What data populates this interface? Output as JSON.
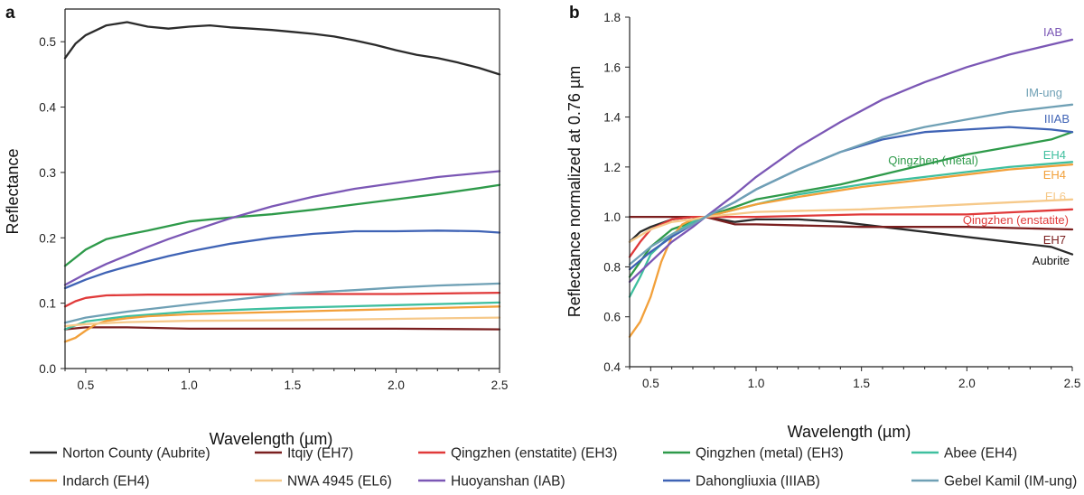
{
  "chart_data": [
    {
      "panel": "a",
      "type": "line",
      "xlabel": "Wavelength (µm)",
      "ylabel": "Reflectance",
      "xlim": [
        0.4,
        2.5
      ],
      "ylim": [
        0.0,
        0.55
      ],
      "xticks": [
        0.5,
        1.0,
        1.5,
        2.0,
        2.5
      ],
      "xtick_labels": [
        "0.5",
        "1.0",
        "1.5",
        "2.0",
        "2.5"
      ],
      "yticks": [
        0.0,
        0.1,
        0.2,
        0.3,
        0.4,
        0.5
      ],
      "ytick_labels": [
        "0.0",
        "0.1",
        "0.2",
        "0.3",
        "0.4",
        "0.5"
      ],
      "series": [
        {
          "name": "Norton County (Aubrite)",
          "color": "#2b2b2b",
          "x": [
            0.4,
            0.45,
            0.5,
            0.6,
            0.7,
            0.8,
            0.9,
            1.0,
            1.1,
            1.2,
            1.3,
            1.4,
            1.5,
            1.6,
            1.7,
            1.8,
            1.9,
            2.0,
            2.1,
            2.2,
            2.3,
            2.4,
            2.5
          ],
          "y": [
            0.475,
            0.497,
            0.51,
            0.525,
            0.53,
            0.523,
            0.52,
            0.523,
            0.525,
            0.522,
            0.52,
            0.518,
            0.515,
            0.512,
            0.508,
            0.502,
            0.495,
            0.487,
            0.48,
            0.475,
            0.468,
            0.46,
            0.45
          ]
        },
        {
          "name": "Itqiy (EH7)",
          "color": "#7a1f1f",
          "x": [
            0.4,
            0.5,
            0.7,
            1.0,
            1.5,
            2.0,
            2.5
          ],
          "y": [
            0.06,
            0.063,
            0.063,
            0.061,
            0.061,
            0.061,
            0.06
          ]
        },
        {
          "name": "Qingzhen (enstatite) (EH3)",
          "color": "#e03a3a",
          "x": [
            0.4,
            0.45,
            0.5,
            0.6,
            0.8,
            1.0,
            1.5,
            2.0,
            2.5
          ],
          "y": [
            0.095,
            0.103,
            0.108,
            0.112,
            0.113,
            0.113,
            0.114,
            0.114,
            0.116
          ]
        },
        {
          "name": "Qingzhen (metal) (EH3)",
          "color": "#2e9a4a",
          "x": [
            0.4,
            0.5,
            0.6,
            0.7,
            0.8,
            0.9,
            1.0,
            1.2,
            1.4,
            1.6,
            1.8,
            2.0,
            2.2,
            2.4,
            2.5
          ],
          "y": [
            0.157,
            0.182,
            0.198,
            0.205,
            0.211,
            0.218,
            0.225,
            0.231,
            0.236,
            0.243,
            0.251,
            0.259,
            0.267,
            0.276,
            0.281
          ]
        },
        {
          "name": "Abee (EH4)",
          "color": "#3fbf9f",
          "x": [
            0.4,
            0.5,
            0.7,
            1.0,
            1.5,
            2.0,
            2.5
          ],
          "y": [
            0.06,
            0.072,
            0.08,
            0.087,
            0.093,
            0.097,
            0.101
          ]
        },
        {
          "name": "Indarch (EH4)",
          "color": "#f2a03a",
          "x": [
            0.4,
            0.45,
            0.5,
            0.55,
            0.6,
            0.7,
            0.8,
            1.0,
            1.5,
            2.0,
            2.5
          ],
          "y": [
            0.041,
            0.047,
            0.058,
            0.068,
            0.073,
            0.077,
            0.08,
            0.083,
            0.087,
            0.091,
            0.095
          ]
        },
        {
          "name": "NWA 4945 (EL6)",
          "color": "#f6c98a",
          "x": [
            0.4,
            0.5,
            0.7,
            1.0,
            1.5,
            2.0,
            2.5
          ],
          "y": [
            0.065,
            0.068,
            0.071,
            0.073,
            0.074,
            0.076,
            0.078
          ]
        },
        {
          "name": "Huoyanshan (IAB)",
          "color": "#7b57b5",
          "x": [
            0.4,
            0.5,
            0.6,
            0.7,
            0.8,
            0.9,
            1.0,
            1.2,
            1.4,
            1.6,
            1.8,
            2.0,
            2.2,
            2.4,
            2.5
          ],
          "y": [
            0.128,
            0.145,
            0.16,
            0.173,
            0.186,
            0.198,
            0.209,
            0.23,
            0.248,
            0.263,
            0.275,
            0.284,
            0.293,
            0.299,
            0.302
          ]
        },
        {
          "name": "Dahongliuxia (IIIAB)",
          "color": "#3f63b5",
          "x": [
            0.4,
            0.5,
            0.6,
            0.7,
            0.8,
            0.9,
            1.0,
            1.2,
            1.4,
            1.6,
            1.8,
            2.0,
            2.2,
            2.4,
            2.5
          ],
          "y": [
            0.123,
            0.136,
            0.147,
            0.156,
            0.164,
            0.172,
            0.179,
            0.191,
            0.2,
            0.206,
            0.21,
            0.21,
            0.211,
            0.21,
            0.208
          ]
        },
        {
          "name": "Gebel Kamil (IM-ung)",
          "color": "#6fa0b5",
          "x": [
            0.4,
            0.5,
            0.7,
            1.0,
            1.3,
            1.5,
            1.8,
            2.0,
            2.2,
            2.5
          ],
          "y": [
            0.07,
            0.078,
            0.087,
            0.098,
            0.108,
            0.115,
            0.12,
            0.124,
            0.127,
            0.13
          ]
        }
      ]
    },
    {
      "panel": "b",
      "type": "line",
      "xlabel": "Wavelength (µm)",
      "ylabel": "Reflectance normalized at 0.76 µm",
      "xlim": [
        0.4,
        2.5
      ],
      "ylim": [
        0.4,
        1.8
      ],
      "xticks": [
        0.5,
        1.0,
        1.5,
        2.0,
        2.5
      ],
      "xtick_labels": [
        "0.5",
        "1.0",
        "1.5",
        "2.0",
        "2.5"
      ],
      "yticks": [
        0.4,
        0.6,
        0.8,
        1.0,
        1.2,
        1.4,
        1.6,
        1.8
      ],
      "ytick_labels": [
        "0.4",
        "0.6",
        "0.8",
        "1.0",
        "1.2",
        "1.4",
        "1.6",
        "1.8"
      ],
      "series": [
        {
          "name": "Norton County (Aubrite)",
          "label": "Aubrite",
          "color": "#2b2b2b",
          "x": [
            0.4,
            0.45,
            0.5,
            0.6,
            0.7,
            0.76,
            0.9,
            1.0,
            1.2,
            1.4,
            1.6,
            1.8,
            2.0,
            2.2,
            2.4,
            2.5
          ],
          "y": [
            0.9,
            0.94,
            0.96,
            0.99,
            1.0,
            1.0,
            0.98,
            0.99,
            0.99,
            0.98,
            0.96,
            0.94,
            0.92,
            0.9,
            0.88,
            0.85
          ]
        },
        {
          "name": "Itqiy (EH7)",
          "label": "EH7",
          "color": "#7a1f1f",
          "x": [
            0.4,
            0.5,
            0.6,
            0.7,
            0.76,
            0.9,
            1.0,
            1.5,
            2.0,
            2.5
          ],
          "y": [
            1.0,
            1.0,
            1.0,
            1.0,
            1.0,
            0.97,
            0.97,
            0.96,
            0.96,
            0.95
          ]
        },
        {
          "name": "Qingzhen (enstatite) (EH3)",
          "label": "Qingzhen (enstatite)",
          "color": "#e03a3a",
          "x": [
            0.4,
            0.45,
            0.5,
            0.6,
            0.7,
            0.76,
            1.0,
            1.5,
            2.0,
            2.5
          ],
          "y": [
            0.84,
            0.9,
            0.95,
            0.99,
            1.0,
            1.0,
            1.0,
            1.01,
            1.01,
            1.03
          ]
        },
        {
          "name": "Qingzhen (metal) (EH3)",
          "label": "Qingzhen (metal)",
          "color": "#2e9a4a",
          "x": [
            0.4,
            0.5,
            0.6,
            0.7,
            0.76,
            0.9,
            1.0,
            1.2,
            1.4,
            1.6,
            1.8,
            2.0,
            2.2,
            2.4,
            2.5
          ],
          "y": [
            0.76,
            0.88,
            0.95,
            0.98,
            1.0,
            1.04,
            1.07,
            1.1,
            1.13,
            1.17,
            1.21,
            1.25,
            1.28,
            1.31,
            1.34
          ]
        },
        {
          "name": "Abee (EH4)",
          "label": "EH4",
          "color": "#3fbf9f",
          "x": [
            0.4,
            0.45,
            0.5,
            0.6,
            0.7,
            0.76,
            1.0,
            1.2,
            1.5,
            1.8,
            2.0,
            2.2,
            2.5
          ],
          "y": [
            0.68,
            0.76,
            0.85,
            0.93,
            0.98,
            1.0,
            1.05,
            1.09,
            1.13,
            1.16,
            1.18,
            1.2,
            1.22
          ]
        },
        {
          "name": "Indarch (EH4)",
          "label": "EH4",
          "color": "#f2a03a",
          "x": [
            0.4,
            0.45,
            0.5,
            0.55,
            0.6,
            0.65,
            0.7,
            0.76,
            1.0,
            1.2,
            1.5,
            1.8,
            2.0,
            2.2,
            2.5
          ],
          "y": [
            0.52,
            0.58,
            0.68,
            0.82,
            0.92,
            0.97,
            0.99,
            1.0,
            1.05,
            1.08,
            1.12,
            1.15,
            1.17,
            1.19,
            1.21
          ]
        },
        {
          "name": "NWA 4945 (EL6)",
          "label": "EL6",
          "color": "#f6c98a",
          "x": [
            0.4,
            0.5,
            0.6,
            0.7,
            0.76,
            1.0,
            1.5,
            2.0,
            2.5
          ],
          "y": [
            0.9,
            0.95,
            0.98,
            0.99,
            1.0,
            1.02,
            1.03,
            1.05,
            1.07
          ]
        },
        {
          "name": "Huoyanshan (IAB)",
          "label": "IAB",
          "color": "#7b57b5",
          "x": [
            0.4,
            0.5,
            0.6,
            0.7,
            0.76,
            0.9,
            1.0,
            1.2,
            1.4,
            1.6,
            1.8,
            2.0,
            2.2,
            2.4,
            2.5
          ],
          "y": [
            0.74,
            0.82,
            0.9,
            0.96,
            1.0,
            1.09,
            1.16,
            1.28,
            1.38,
            1.47,
            1.54,
            1.6,
            1.65,
            1.69,
            1.71
          ]
        },
        {
          "name": "Dahongliuxia (IIIAB)",
          "label": "IIIAB",
          "color": "#3f63b5",
          "x": [
            0.4,
            0.5,
            0.6,
            0.7,
            0.76,
            0.9,
            1.0,
            1.2,
            1.4,
            1.6,
            1.8,
            2.0,
            2.2,
            2.4,
            2.5
          ],
          "y": [
            0.79,
            0.86,
            0.92,
            0.97,
            1.0,
            1.06,
            1.11,
            1.19,
            1.26,
            1.31,
            1.34,
            1.35,
            1.36,
            1.35,
            1.34
          ]
        },
        {
          "name": "Gebel Kamil (IM-ung)",
          "label": "IM-ung",
          "color": "#6fa0b5",
          "x": [
            0.4,
            0.5,
            0.6,
            0.7,
            0.76,
            0.9,
            1.0,
            1.2,
            1.4,
            1.6,
            1.8,
            2.0,
            2.2,
            2.4,
            2.5
          ],
          "y": [
            0.81,
            0.88,
            0.93,
            0.97,
            1.0,
            1.06,
            1.11,
            1.19,
            1.26,
            1.32,
            1.36,
            1.39,
            1.42,
            1.44,
            1.45
          ]
        }
      ],
      "annotations": [
        "IAB",
        "IM-ung",
        "IIIAB",
        "Qingzhen (metal)",
        "EH4",
        "EH4",
        "EL6",
        "Qingzhen (enstatite)",
        "EH7",
        "Aubrite"
      ]
    }
  ],
  "panel_letters": {
    "a": "a",
    "b": "b"
  },
  "legend": [
    {
      "label": "Norton County (Aubrite)",
      "color": "#2b2b2b"
    },
    {
      "label": "Itqiy (EH7)",
      "color": "#7a1f1f"
    },
    {
      "label": "Qingzhen (enstatite) (EH3)",
      "color": "#e03a3a"
    },
    {
      "label": "Qingzhen (metal) (EH3)",
      "color": "#2e9a4a"
    },
    {
      "label": "Abee (EH4)",
      "color": "#3fbf9f"
    },
    {
      "label": "Indarch (EH4)",
      "color": "#f2a03a"
    },
    {
      "label": "NWA 4945 (EL6)",
      "color": "#f6c98a"
    },
    {
      "label": "Huoyanshan (IAB)",
      "color": "#7b57b5"
    },
    {
      "label": "Dahongliuxia (IIIAB)",
      "color": "#3f63b5"
    },
    {
      "label": "Gebel Kamil (IM-ung)",
      "color": "#6fa0b5"
    }
  ]
}
